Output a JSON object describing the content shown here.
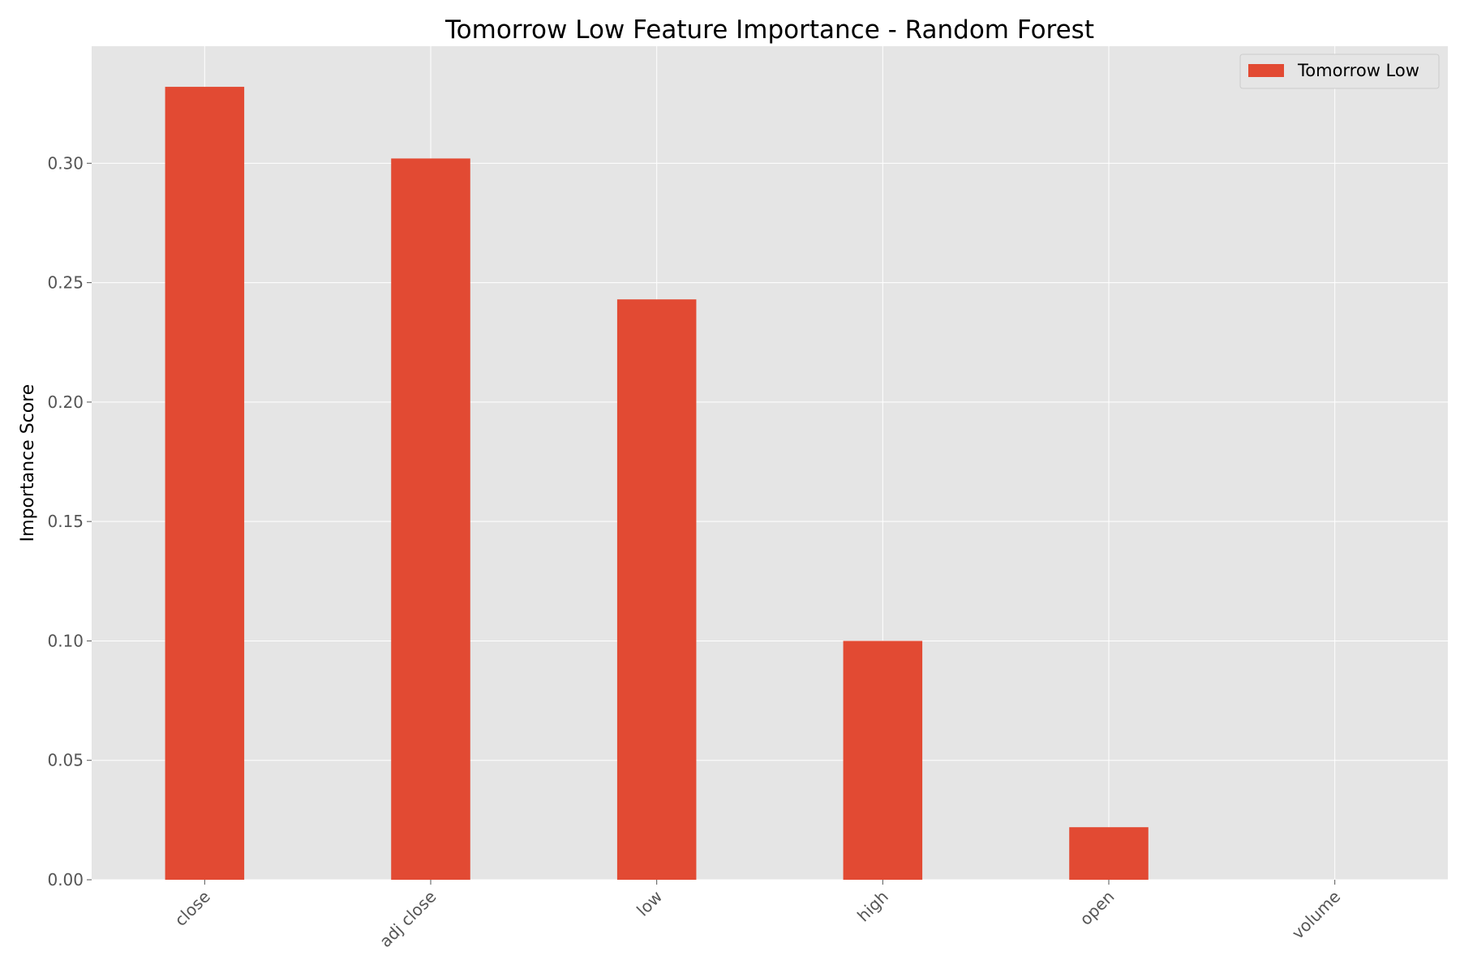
{
  "chart_data": {
    "type": "bar",
    "title": "Tomorrow Low Feature Importance - Random Forest",
    "xlabel": "",
    "ylabel": "Importance Score",
    "categories": [
      "close",
      "adj close",
      "low",
      "high",
      "open",
      "volume"
    ],
    "series": [
      {
        "name": "Tomorrow Low",
        "values": [
          0.332,
          0.302,
          0.243,
          0.1,
          0.022,
          0.0
        ]
      }
    ],
    "ylim": [
      0,
      0.349
    ],
    "yticks": [
      0.0,
      0.05,
      0.1,
      0.15,
      0.2,
      0.25,
      0.3
    ],
    "ytick_labels": [
      "0.00",
      "0.05",
      "0.10",
      "0.15",
      "0.20",
      "0.25",
      "0.30"
    ],
    "grid": true,
    "legend": "top-right",
    "colors": {
      "bar": "#E24A33",
      "plot_background": "#E5E5E5",
      "grid": "#FFFFFF",
      "tick_text": "#555555"
    }
  }
}
